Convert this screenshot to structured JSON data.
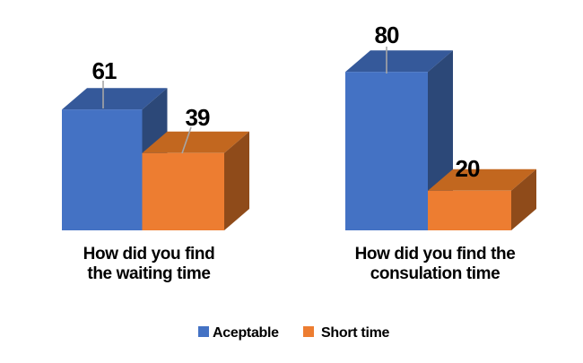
{
  "chart_data": {
    "type": "bar",
    "projection": "3d",
    "title": "",
    "xlabel": "",
    "ylabel": "",
    "axes_visible": false,
    "grid": false,
    "data_labels_visible": true,
    "legend_position": "bottom",
    "ylim": [
      0,
      80
    ],
    "series": [
      {
        "name": "Aceptable",
        "color": "#4472C4"
      },
      {
        "name": "Short time",
        "color": "#ED7D31"
      }
    ],
    "groups": [
      {
        "category": "How did you find the waiting time",
        "category_lines": [
          "How did you find",
          "the waiting time"
        ],
        "values": [
          61,
          39
        ]
      },
      {
        "category": "How did you find the consulation time",
        "category_lines": [
          "How did you find the",
          "consulation time"
        ],
        "values": [
          80,
          20
        ]
      }
    ]
  },
  "colors": {
    "background": "#FFFFFF",
    "label_text": "#000000",
    "leader_line": "#A6A6A6",
    "series_faces": [
      {
        "front": "#4472C4",
        "top": "#35599A",
        "side": "#2C4878"
      },
      {
        "front": "#ED7D31",
        "top": "#C2671F",
        "side": "#8F4B1A"
      }
    ]
  }
}
